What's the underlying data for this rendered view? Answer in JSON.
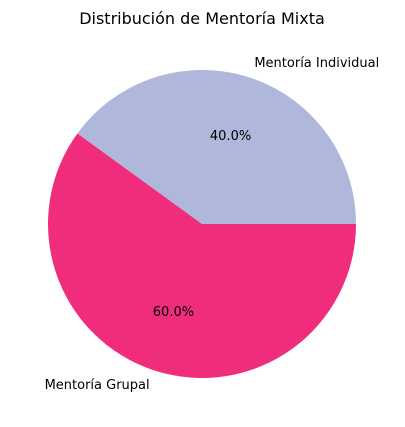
{
  "chart_data": {
    "type": "pie",
    "title": "Distribución de Mentoría Mixta",
    "slices": [
      {
        "label": "Mentoría Individual",
        "value": 40.0,
        "pct_label": "40.0%",
        "color": "#afb8da"
      },
      {
        "label": "Mentoría Grupal",
        "value": 60.0,
        "pct_label": "60.0%",
        "color": "#f02d7d"
      }
    ],
    "start_angle_deg": 0,
    "direction": "counterclockwise",
    "legend": "none"
  }
}
